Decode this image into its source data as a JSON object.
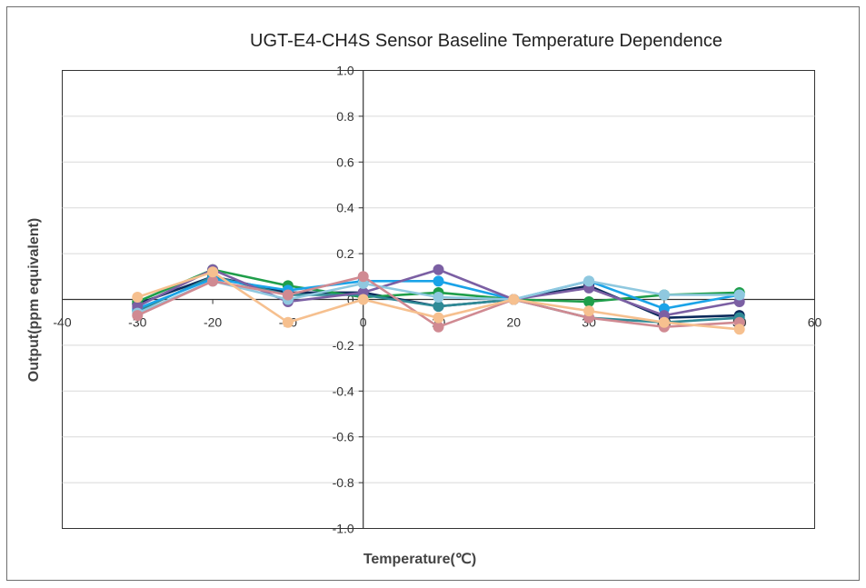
{
  "chart_data": {
    "type": "line",
    "title": "UGT-E4-CH4S Sensor Baseline Temperature Dependence",
    "xlabel": "Temperature(℃)",
    "ylabel": "Output(ppm equivalent)",
    "xlim": [
      -40,
      60
    ],
    "ylim": [
      -1.0,
      1.0
    ],
    "xticks": [
      "-40",
      "-30",
      "-20",
      "-10",
      "0",
      "10",
      "20",
      "30",
      "40",
      "50",
      "60"
    ],
    "yticks": [
      "1.0",
      "0.8",
      "0.6",
      "0.4",
      "0.2",
      "0",
      "-0.2",
      "-0.4",
      "-0.6",
      "-0.8",
      "-1.0"
    ],
    "grid": true,
    "legend": "none",
    "x": [
      -30,
      -20,
      -10,
      0,
      10,
      20,
      30,
      40,
      50
    ],
    "series": [
      {
        "color": "#0b2a5b",
        "values": [
          -0.02,
          0.1,
          0.03,
          0.03,
          -0.03,
          0.0,
          0.06,
          -0.08,
          -0.07
        ]
      },
      {
        "color": "#1f9e4a",
        "values": [
          -0.01,
          0.13,
          0.06,
          0.01,
          0.03,
          0.0,
          -0.01,
          0.02,
          0.03
        ]
      },
      {
        "color": "#2f8a96",
        "values": [
          -0.05,
          0.1,
          0.02,
          0.02,
          -0.03,
          0.0,
          -0.08,
          -0.1,
          -0.08
        ]
      },
      {
        "color": "#1aa3e8",
        "values": [
          -0.04,
          0.09,
          0.04,
          0.08,
          0.08,
          0.0,
          0.08,
          -0.04,
          0.02
        ]
      },
      {
        "color": "#7b5fa3",
        "values": [
          -0.03,
          0.13,
          -0.01,
          0.03,
          0.13,
          0.0,
          0.05,
          -0.07,
          -0.01
        ]
      },
      {
        "color": "#8fc8df",
        "values": [
          -0.06,
          0.08,
          0.0,
          0.07,
          0.01,
          0.0,
          0.08,
          0.02,
          0.02
        ]
      },
      {
        "color": "#d08a92",
        "values": [
          -0.07,
          0.08,
          0.02,
          0.1,
          -0.12,
          0.0,
          -0.08,
          -0.12,
          -0.1
        ]
      },
      {
        "color": "#f6c08f",
        "values": [
          0.01,
          0.12,
          -0.1,
          0.0,
          -0.08,
          0.0,
          -0.05,
          -0.1,
          -0.13
        ]
      }
    ]
  }
}
